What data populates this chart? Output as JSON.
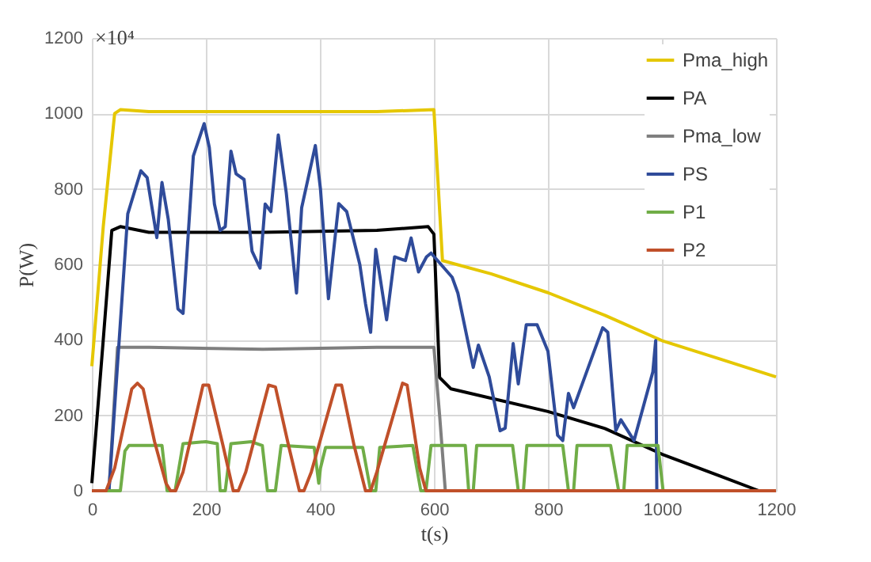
{
  "chart_data": {
    "type": "line",
    "xlabel": "t(s)",
    "ylabel": "P(W)",
    "xlim": [
      0,
      1200
    ],
    "ylim": [
      0,
      1200
    ],
    "xticks": [
      0,
      200,
      400,
      600,
      800,
      1000,
      1200
    ],
    "yticks": [
      0,
      200,
      400,
      600,
      800,
      1000,
      1200
    ],
    "annotations": [
      "×10⁴"
    ],
    "grid": true,
    "legend": "top right",
    "line_style": "solid",
    "marker": "none",
    "series": [
      {
        "name": "Pma_high",
        "color": "#e5c700",
        "x": [
          0,
          20,
          40,
          50,
          100,
          300,
          500,
          600,
          615,
          700,
          800,
          900,
          1000,
          1100,
          1200
        ],
        "values": [
          330,
          700,
          1000,
          1010,
          1005,
          1005,
          1005,
          1010,
          610,
          575,
          525,
          465,
          398,
          350,
          302
        ]
      },
      {
        "name": "PA",
        "color": "#000000",
        "x": [
          0,
          20,
          35,
          50,
          100,
          300,
          500,
          590,
          600,
          610,
          630,
          800,
          900,
          1000,
          1100,
          1170,
          1200
        ],
        "values": [
          20,
          400,
          690,
          700,
          685,
          685,
          690,
          700,
          680,
          300,
          270,
          210,
          165,
          97,
          40,
          0,
          0
        ]
      },
      {
        "name": "Pma_low",
        "color": "#7f7f7f",
        "x": [
          30,
          45,
          100,
          300,
          500,
          600,
          610,
          620
        ],
        "values": [
          0,
          380,
          380,
          375,
          380,
          380,
          200,
          0
        ]
      },
      {
        "name": "PS",
        "color": "#2f4b9a",
        "x": [
          30,
          63,
          86,
          97,
          114,
          123,
          134,
          151,
          160,
          178,
          197,
          206,
          215,
          225,
          234,
          244,
          253,
          267,
          281,
          295,
          304,
          314,
          327,
          341,
          359,
          368,
          392,
          401,
          415,
          433,
          447,
          470,
          480,
          489,
          498,
          517,
          531,
          550,
          560,
          573,
          587,
          595,
          632,
          642,
          669,
          678,
          697,
          716,
          725,
          739,
          748,
          762,
          781,
          800,
          817,
          826,
          836,
          845,
          896,
          905,
          919,
          928,
          951,
          984,
          989,
          991
        ],
        "values": [
          0,
          734,
          848,
          830,
          671,
          817,
          720,
          482,
          470,
          887,
          973,
          910,
          760,
          690,
          700,
          900,
          840,
          825,
          635,
          590,
          760,
          740,
          943,
          790,
          524,
          750,
          915,
          800,
          509,
          761,
          740,
          600,
          496,
          420,
          640,
          453,
          620,
          610,
          670,
          580,
          620,
          630,
          566,
          524,
          327,
          386,
          302,
          159,
          166,
          390,
          283,
          440,
          440,
          370,
          147,
          133,
          258,
          220,
          432,
          420,
          159,
          188,
          133,
          315,
          398,
          0
        ]
      },
      {
        "name": "P1",
        "color": "#70ad47",
        "x": [
          0,
          50,
          58,
          65,
          123,
          132,
          146,
          160,
          200,
          220,
          225,
          234,
          244,
          280,
          299,
          308,
          322,
          332,
          390,
          398,
          401,
          410,
          475,
          489,
          498,
          505,
          563,
          577,
          586,
          595,
          655,
          661,
          669,
          675,
          738,
          748,
          757,
          763,
          826,
          836,
          845,
          851,
          910,
          924,
          933,
          939,
          993,
          1002
        ],
        "values": [
          0,
          0,
          105,
          120,
          120,
          0,
          0,
          125,
          130,
          125,
          0,
          0,
          125,
          130,
          120,
          0,
          0,
          120,
          115,
          20,
          60,
          115,
          115,
          0,
          0,
          115,
          120,
          0,
          0,
          120,
          120,
          0,
          0,
          120,
          120,
          0,
          0,
          120,
          120,
          0,
          0,
          120,
          120,
          0,
          0,
          120,
          120,
          0
        ]
      },
      {
        "name": "P2",
        "color": "#c0502a",
        "x": [
          0,
          25,
          40,
          70,
          80,
          90,
          110,
          130,
          138,
          147,
          160,
          195,
          205,
          230,
          248,
          257,
          270,
          310,
          322,
          345,
          364,
          372,
          385,
          428,
          438,
          460,
          480,
          489,
          500,
          545,
          553,
          575,
          586,
          1200
        ],
        "values": [
          0,
          0,
          60,
          270,
          285,
          270,
          130,
          20,
          0,
          0,
          50,
          280,
          280,
          120,
          0,
          0,
          50,
          280,
          275,
          120,
          0,
          0,
          50,
          280,
          280,
          120,
          0,
          0,
          50,
          285,
          280,
          60,
          0,
          0
        ]
      }
    ]
  }
}
